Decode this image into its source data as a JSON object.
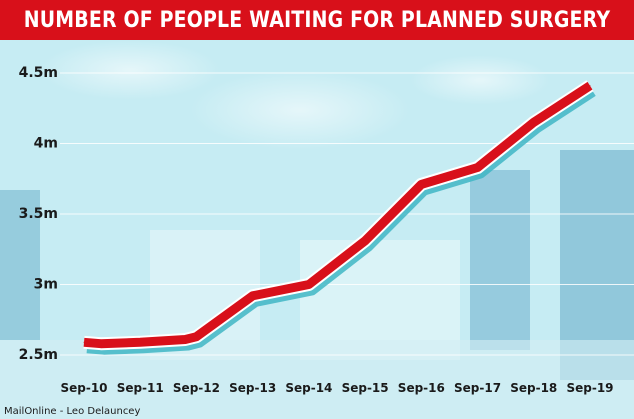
{
  "title": "NUMBER OF PEOPLE WAITING FOR PLANNED SURGERY",
  "credit": "MailOnline - Leo Delauncey",
  "colors": {
    "title_bg": "#d8101a",
    "line": "#d8101a",
    "shadow": "#3fb6c4"
  },
  "chart_data": {
    "type": "line",
    "title": "NUMBER OF PEOPLE WAITING FOR PLANNED SURGERY",
    "xlabel": "",
    "ylabel": "",
    "ylim": [
      2.4,
      4.6
    ],
    "grid": true,
    "y_ticks": [
      {
        "value": 2.5,
        "label": "2.5m"
      },
      {
        "value": 3,
        "label": "3m"
      },
      {
        "value": 3.5,
        "label": "3.5m"
      },
      {
        "value": 4,
        "label": "4m"
      },
      {
        "value": 4.5,
        "label": "4.5m"
      }
    ],
    "categories": [
      "Sep-10",
      "Sep-11",
      "Sep-12",
      "Sep-13",
      "Sep-14",
      "Sep-15",
      "Sep-16",
      "Sep-17",
      "Sep-18",
      "Sep-19"
    ],
    "points": [
      {
        "x": "Sep-10",
        "y": 2.59
      },
      {
        "x": "Sep-10",
        "y": 2.58
      },
      {
        "x": "Sep-11",
        "y": 2.59
      },
      {
        "x": "Sep-11",
        "y": 2.61
      },
      {
        "x": "Sep-12",
        "y": 2.63
      },
      {
        "x": "Sep-13",
        "y": 2.92
      },
      {
        "x": "Sep-14",
        "y": 3.0
      },
      {
        "x": "Sep-15",
        "y": 3.31
      },
      {
        "x": "Sep-16",
        "y": 3.71
      },
      {
        "x": "Sep-17",
        "y": 3.83
      },
      {
        "x": "Sep-18",
        "y": 4.15
      },
      {
        "x": "Sep-19",
        "y": 4.41
      }
    ],
    "point_offsets": [
      0,
      0.3,
      0,
      0.8,
      0,
      0,
      0,
      0,
      0,
      0,
      0,
      0
    ]
  }
}
